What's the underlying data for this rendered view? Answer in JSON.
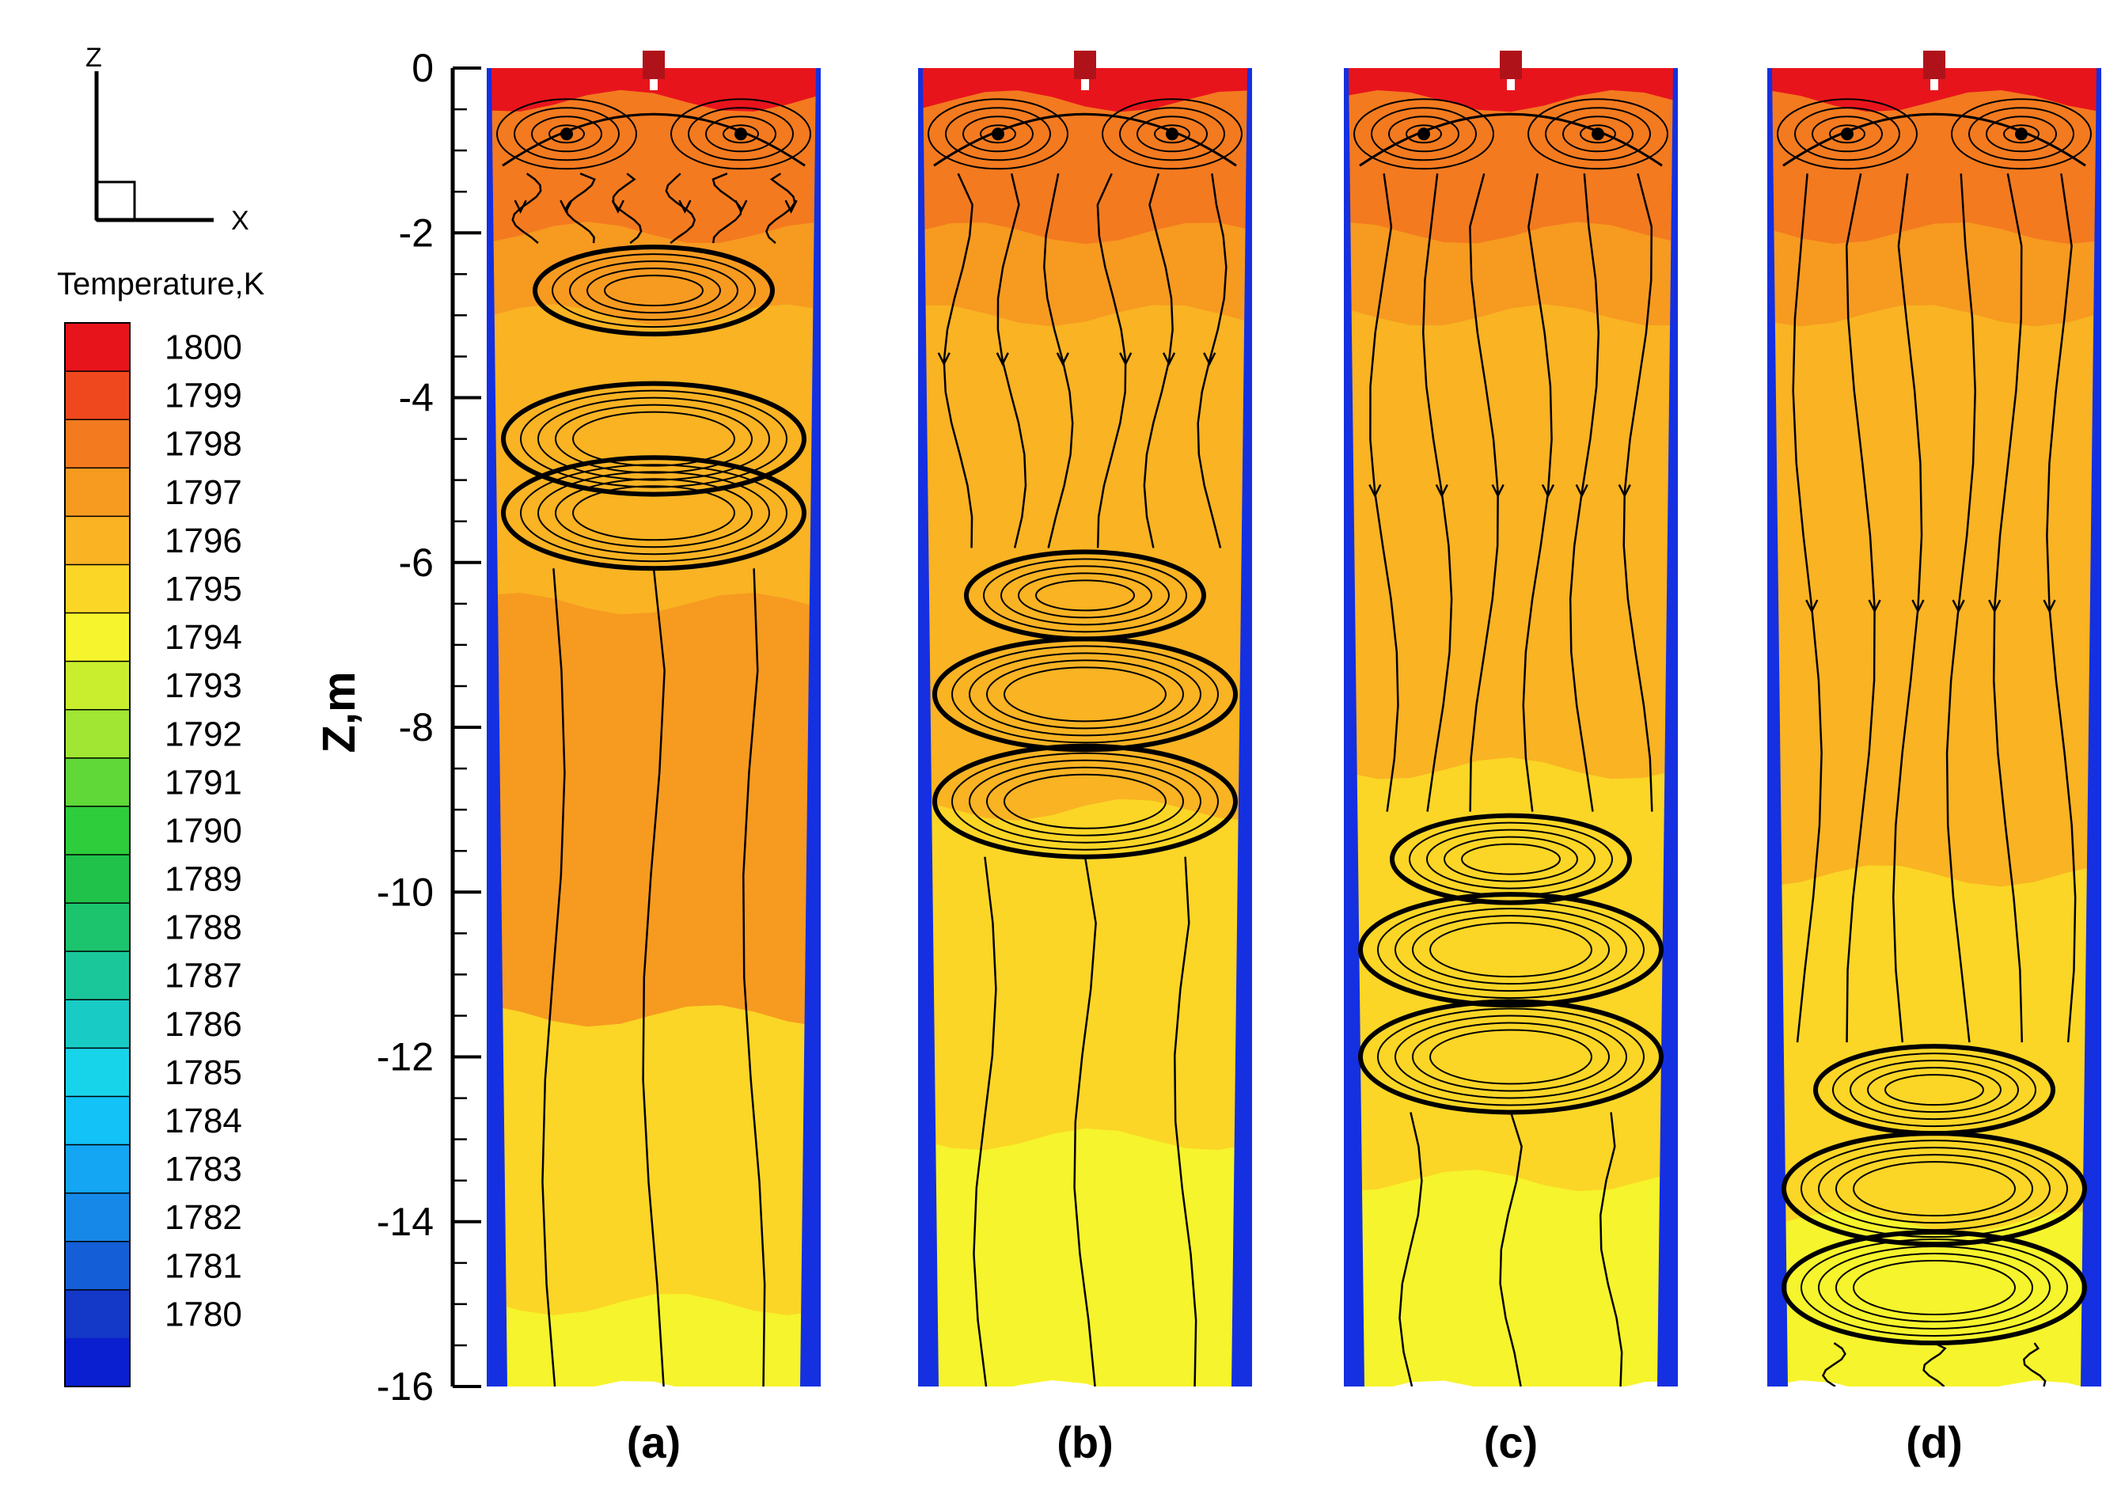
{
  "chart_data": {
    "type": "heatmap",
    "title": "",
    "colorbar": {
      "title": "Temperature,K",
      "ticks": [
        1800,
        1799,
        1798,
        1797,
        1796,
        1795,
        1794,
        1793,
        1792,
        1791,
        1790,
        1789,
        1788,
        1787,
        1786,
        1785,
        1784,
        1783,
        1782,
        1781,
        1780
      ],
      "colors": [
        "#e8141c",
        "#f0481e",
        "#f37a1f",
        "#f79a20",
        "#f9b323",
        "#fbd626",
        "#f6f42c",
        "#c8ee2e",
        "#a0e632",
        "#5fd838",
        "#2ecd3c",
        "#20c24a",
        "#1cc46e",
        "#1ac79a",
        "#18cbc4",
        "#18d4ea",
        "#13c2f6",
        "#14a6f2",
        "#1688e8",
        "#145fd8",
        "#1438c8",
        "#0a1fd0"
      ]
    },
    "axes_indicator": {
      "vertical": "Z",
      "horizontal": "X"
    },
    "ylabel": "Z,m",
    "ylim": [
      -16,
      0
    ],
    "yticks": [
      0,
      -2,
      -4,
      -6,
      -8,
      -10,
      -12,
      -14,
      -16
    ],
    "panels": [
      {
        "label": "(a)",
        "bands": [
          [
            0,
            -0.4,
            "#e8141c"
          ],
          [
            -0.4,
            -2.0,
            "#f37a1f"
          ],
          [
            -2.0,
            -3.0,
            "#f79a20"
          ],
          [
            -3.0,
            -6.5,
            "#f9b323"
          ],
          [
            -6.5,
            -11.5,
            "#f79a20"
          ],
          [
            -11.5,
            -15.0,
            "#fbd626"
          ],
          [
            -15.0,
            -16.0,
            "#f6f42c"
          ]
        ],
        "recirculation_centers": [
          -0.8,
          -2.7,
          -4.5,
          -5.4
        ]
      },
      {
        "label": "(b)",
        "bands": [
          [
            0,
            -0.4,
            "#e8141c"
          ],
          [
            -0.4,
            -2.0,
            "#f37a1f"
          ],
          [
            -2.0,
            -3.0,
            "#f79a20"
          ],
          [
            -3.0,
            -9.0,
            "#f9b323"
          ],
          [
            -9.0,
            -13.0,
            "#fbd626"
          ],
          [
            -13.0,
            -16.0,
            "#f6f42c"
          ]
        ],
        "recirculation_centers": [
          -0.8,
          -6.4,
          -7.6,
          -8.9
        ]
      },
      {
        "label": "(c)",
        "bands": [
          [
            0,
            -0.4,
            "#e8141c"
          ],
          [
            -0.4,
            -2.0,
            "#f37a1f"
          ],
          [
            -2.0,
            -3.0,
            "#f79a20"
          ],
          [
            -3.0,
            -8.5,
            "#f9b323"
          ],
          [
            -8.5,
            -13.5,
            "#fbd626"
          ],
          [
            -13.5,
            -16.0,
            "#f6f42c"
          ]
        ],
        "recirculation_centers": [
          -0.8,
          -9.6,
          -10.7,
          -12.0
        ]
      },
      {
        "label": "(d)",
        "bands": [
          [
            0,
            -0.4,
            "#e8141c"
          ],
          [
            -0.4,
            -2.0,
            "#f37a1f"
          ],
          [
            -2.0,
            -3.0,
            "#f79a20"
          ],
          [
            -3.0,
            -9.8,
            "#f9b323"
          ],
          [
            -9.8,
            -14.0,
            "#fbd626"
          ],
          [
            -14.0,
            -16.0,
            "#f6f42c"
          ]
        ],
        "recirculation_centers": [
          -0.8,
          -12.4,
          -13.6,
          -14.8
        ]
      }
    ],
    "wall_color": "#1430e0",
    "nozzle_color": "#b0121a",
    "streamline_color": "#000000"
  }
}
